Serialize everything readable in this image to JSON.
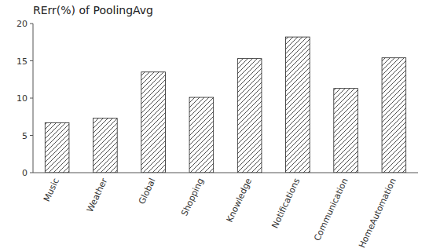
{
  "chart_data": {
    "type": "bar",
    "title": "RErr(%) of PoolingAvg",
    "categories": [
      "Music",
      "Weather",
      "Global",
      "Shopping",
      "Knowledge",
      "Notifications",
      "Communication",
      "HomeAutomation"
    ],
    "values": [
      6.7,
      7.3,
      13.5,
      10.1,
      15.3,
      18.2,
      11.3,
      15.4
    ],
    "color": "#222222",
    "ylim": [
      0,
      20
    ],
    "yticks": [
      0,
      5,
      10,
      15,
      20
    ],
    "grid": false
  }
}
